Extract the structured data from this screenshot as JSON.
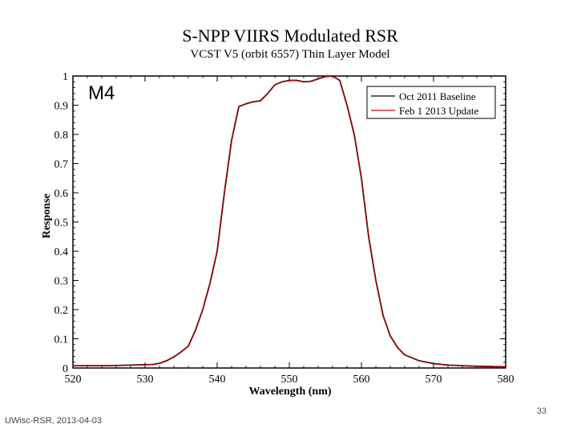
{
  "chart_data": {
    "type": "line",
    "title": "S-NPP VIIRS Modulated RSR",
    "subtitle": "VCST V5 (orbit 6557) Thin Layer Model",
    "annotation": "M4",
    "xlabel": "Wavelength (nm)",
    "ylabel": "Response",
    "xlim": [
      520,
      580
    ],
    "ylim": [
      0,
      1
    ],
    "xticks": [
      "520",
      "530",
      "540",
      "550",
      "560",
      "570",
      "580"
    ],
    "yticks": [
      "0",
      "0.1",
      "0.2",
      "0.3",
      "0.4",
      "0.5",
      "0.6",
      "0.7",
      "0.8",
      "0.9",
      "1"
    ],
    "legend_position": "top-right",
    "grid": false,
    "series": [
      {
        "name": "Oct 2011 Baseline",
        "color": "#000000",
        "x": [
          520,
          522,
          525,
          528,
          531,
          532,
          533,
          534,
          535,
          536,
          537,
          538,
          539,
          540,
          541,
          542,
          543,
          544,
          545,
          546,
          547,
          548,
          549,
          550,
          551,
          552,
          553,
          554,
          555,
          556,
          557,
          558,
          559,
          560,
          561,
          562,
          563,
          564,
          565,
          566,
          567,
          568,
          570,
          572,
          574,
          576,
          578,
          580
        ],
        "y": [
          0.008,
          0.008,
          0.008,
          0.01,
          0.012,
          0.016,
          0.025,
          0.038,
          0.055,
          0.075,
          0.13,
          0.2,
          0.29,
          0.4,
          0.6,
          0.78,
          0.895,
          0.905,
          0.912,
          0.915,
          0.94,
          0.97,
          0.98,
          0.985,
          0.985,
          0.98,
          0.982,
          0.99,
          0.998,
          1.0,
          0.985,
          0.9,
          0.8,
          0.65,
          0.45,
          0.3,
          0.18,
          0.11,
          0.07,
          0.045,
          0.035,
          0.025,
          0.015,
          0.01,
          0.008,
          0.006,
          0.005,
          0.004
        ]
      },
      {
        "name": "Feb 1 2013 Update",
        "color": "#cc0000",
        "x": [
          520,
          522,
          525,
          528,
          531,
          532,
          533,
          534,
          535,
          536,
          537,
          538,
          539,
          540,
          541,
          542,
          543,
          544,
          545,
          546,
          547,
          548,
          549,
          550,
          551,
          552,
          553,
          554,
          555,
          556,
          557,
          558,
          559,
          560,
          561,
          562,
          563,
          564,
          565,
          566,
          567,
          568,
          570,
          572,
          574,
          576,
          578,
          580
        ],
        "y": [
          0.008,
          0.008,
          0.008,
          0.01,
          0.012,
          0.016,
          0.025,
          0.038,
          0.055,
          0.075,
          0.13,
          0.2,
          0.29,
          0.4,
          0.6,
          0.78,
          0.895,
          0.905,
          0.912,
          0.915,
          0.94,
          0.97,
          0.98,
          0.985,
          0.985,
          0.98,
          0.982,
          0.99,
          0.998,
          1.0,
          0.985,
          0.9,
          0.8,
          0.65,
          0.45,
          0.3,
          0.18,
          0.11,
          0.07,
          0.045,
          0.035,
          0.025,
          0.015,
          0.01,
          0.008,
          0.006,
          0.005,
          0.004
        ]
      }
    ]
  },
  "footer": {
    "left": "UWisc-RSR, 2013-04-03",
    "page_number": "33"
  }
}
